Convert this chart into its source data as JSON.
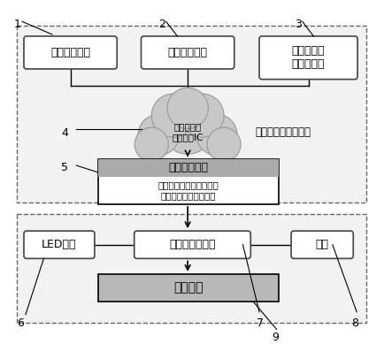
{
  "bg_color": "#ffffff",
  "dashed_box1_color": "#666666",
  "dashed_box2_color": "#666666",
  "cloud_color": "#c8c8c8",
  "cloud_edge_color": "#999999",
  "smart_header_color": "#b0b0b0",
  "light_box_color": "#c0c0c0",
  "box1_label": "无极调光模型",
  "box2_label": "色温调节模型",
  "box3_line1": "亮度视觉曲",
  "box3_line2": "线校正模型",
  "cloud_label": "可编程数字\n电源管理IC",
  "right_text": "高压、高频、多通道",
  "smart_header": "智能控制系统",
  "smart_body": "无极调光、多桉式色温调\n节、亮度视觉曲线校正",
  "led_label": "LED芯片",
  "pkg_label": "一体化封装系统",
  "base_label": "基板",
  "light_label": "光源模块",
  "nums": [
    "1",
    "2",
    "3",
    "4",
    "5",
    "6",
    "7",
    "8",
    "9"
  ]
}
